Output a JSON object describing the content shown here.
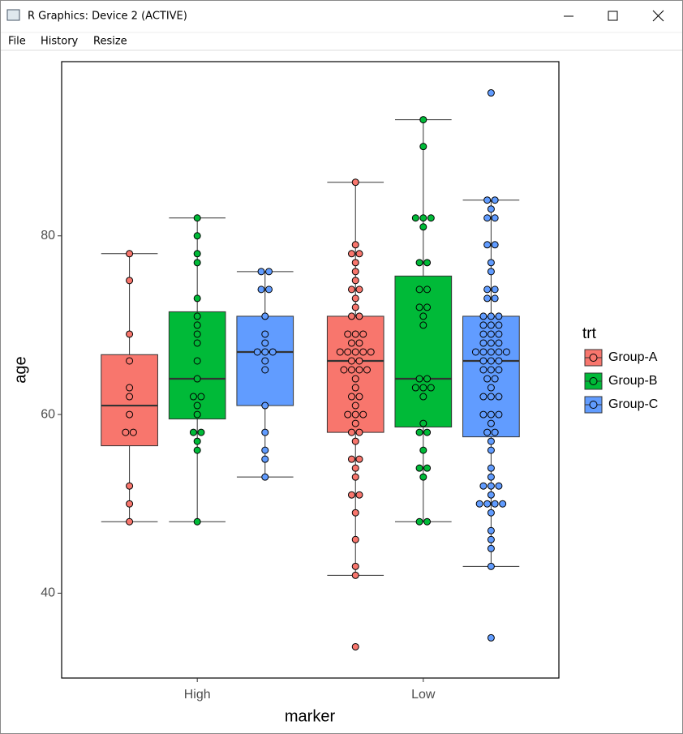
{
  "window": {
    "title": "R Graphics: Device 2 (ACTIVE)",
    "menu": [
      "File",
      "History",
      "Resize"
    ]
  },
  "chart_data": {
    "type": "boxplot",
    "categories": [
      "High",
      "Low"
    ],
    "x_label": "marker",
    "y_label": "age",
    "ylim": [
      30.5,
      99.5
    ],
    "yticks": [
      40,
      60,
      80
    ],
    "legend_title": "trt",
    "legend": "right",
    "grid": false,
    "series": [
      {
        "name": "Group-A",
        "color": "#F8766D",
        "stats": [
          [
            48,
            56.5,
            61,
            66.7,
            78
          ],
          [
            42,
            58,
            66,
            71,
            86
          ]
        ],
        "points": [
          [
            78,
            75,
            69,
            66,
            63,
            62,
            60,
            58,
            58,
            52,
            50,
            48
          ],
          [
            86,
            79,
            78,
            78,
            77,
            76,
            75,
            74,
            74,
            73,
            72,
            71,
            71,
            69,
            69,
            69,
            68,
            68,
            67,
            67,
            67,
            67,
            67,
            66,
            66,
            65,
            65,
            65,
            65,
            64,
            63,
            62,
            62,
            61,
            60,
            60,
            60,
            59,
            58,
            58,
            57,
            55,
            55,
            54,
            53,
            51,
            51,
            49,
            46,
            43,
            42,
            34
          ]
        ]
      },
      {
        "name": "Group-B",
        "color": "#00BA38",
        "stats": [
          [
            48,
            59.5,
            64,
            71.5,
            82
          ],
          [
            48,
            58.6,
            64,
            75.5,
            93
          ]
        ],
        "points": [
          [
            82,
            80,
            78,
            77,
            73,
            71,
            70,
            69,
            68,
            66,
            64,
            62,
            62,
            61,
            60,
            58,
            58,
            57,
            56,
            48
          ],
          [
            93,
            90,
            82,
            82,
            82,
            81,
            77,
            77,
            74,
            74,
            72,
            72,
            71,
            70,
            64,
            64,
            63,
            63,
            63,
            62,
            59,
            58,
            58,
            56,
            54,
            54,
            53,
            48,
            48
          ]
        ]
      },
      {
        "name": "Group-C",
        "color": "#619CFF",
        "stats": [
          [
            53,
            61,
            67,
            71,
            76
          ],
          [
            43,
            57.5,
            66,
            71,
            84
          ]
        ],
        "points": [
          [
            76,
            76,
            74,
            74,
            71,
            69,
            68,
            67,
            67,
            67,
            66,
            65,
            61,
            58,
            56,
            55,
            53
          ],
          [
            96,
            84,
            84,
            83,
            82,
            82,
            79,
            79,
            77,
            76,
            74,
            74,
            73,
            73,
            71,
            71,
            71,
            70,
            70,
            70,
            69,
            69,
            69,
            68,
            68,
            68,
            67,
            67,
            67,
            67,
            67,
            66,
            66,
            66,
            65,
            65,
            65,
            64,
            64,
            63,
            62,
            62,
            62,
            60,
            60,
            60,
            59,
            58,
            58,
            57,
            56,
            54,
            53,
            52,
            52,
            52,
            51,
            50,
            50,
            50,
            50,
            49,
            47,
            46,
            45,
            43,
            35
          ]
        ]
      }
    ]
  }
}
